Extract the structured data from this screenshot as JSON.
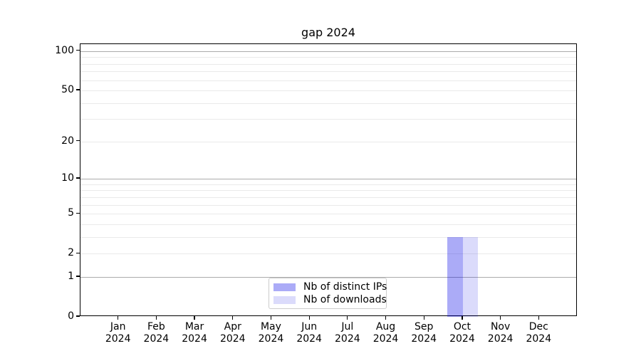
{
  "chart_data": {
    "type": "bar",
    "title": "gap 2024",
    "categories": [
      "Jan 2024",
      "Feb 2024",
      "Mar 2024",
      "Apr 2024",
      "May 2024",
      "Jun 2024",
      "Jul 2024",
      "Aug 2024",
      "Sep 2024",
      "Oct 2024",
      "Nov 2024",
      "Dec 2024"
    ],
    "series": [
      {
        "name": "Nb of distinct IPs",
        "color": "#0000e6",
        "alpha": 0.33,
        "values": [
          0,
          0,
          0,
          0,
          0,
          0,
          0,
          0,
          0,
          3,
          0,
          0
        ]
      },
      {
        "name": "Nb of downloads",
        "color": "#0000e6",
        "alpha": 0.14,
        "values": [
          0,
          0,
          0,
          0,
          0,
          0,
          0,
          0,
          0,
          3,
          0,
          0
        ]
      }
    ],
    "xlabel": "",
    "ylabel": "",
    "y_scale": "log1p",
    "y_ticks": [
      0,
      1,
      2,
      5,
      10,
      20,
      50,
      100
    ],
    "ylim": [
      0,
      113
    ],
    "grid": true,
    "grid_major_values": [
      1,
      10,
      100
    ],
    "grid_minor_values": [
      2,
      3,
      4,
      5,
      6,
      7,
      8,
      9,
      20,
      30,
      40,
      50,
      60,
      70,
      80,
      90
    ],
    "grid_major_color": "#ababab",
    "grid_minor_color": "#eaeaea",
    "legend_position": "lower center",
    "axis_color": "#000000",
    "background_color": "#ffffff"
  }
}
